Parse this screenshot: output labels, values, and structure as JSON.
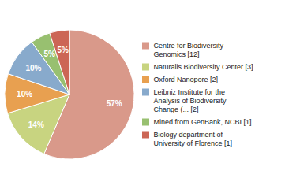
{
  "chart_data": {
    "type": "pie",
    "categories": [
      "Centre for Biodiversity\nGenomics [12]",
      "Naturalis Biodiversity Center [3]",
      "Oxford Nanopore [2]",
      "Leibniz Institute for the\nAnalysis of Biodiversity\nChange (... [2]",
      "Mined from GenBank, NCBI [1]",
      "Biology department of\nUniversity of Florence [1]"
    ],
    "values": [
      57,
      14,
      10,
      10,
      5,
      5
    ],
    "value_labels": [
      "57%",
      "14%",
      "10%",
      "10%",
      "5%",
      "5%"
    ],
    "colors": [
      "#d9998a",
      "#c8d480",
      "#e8a050",
      "#88aacc",
      "#98c070",
      "#cc6655"
    ],
    "data_labels": true,
    "legend": "right"
  }
}
